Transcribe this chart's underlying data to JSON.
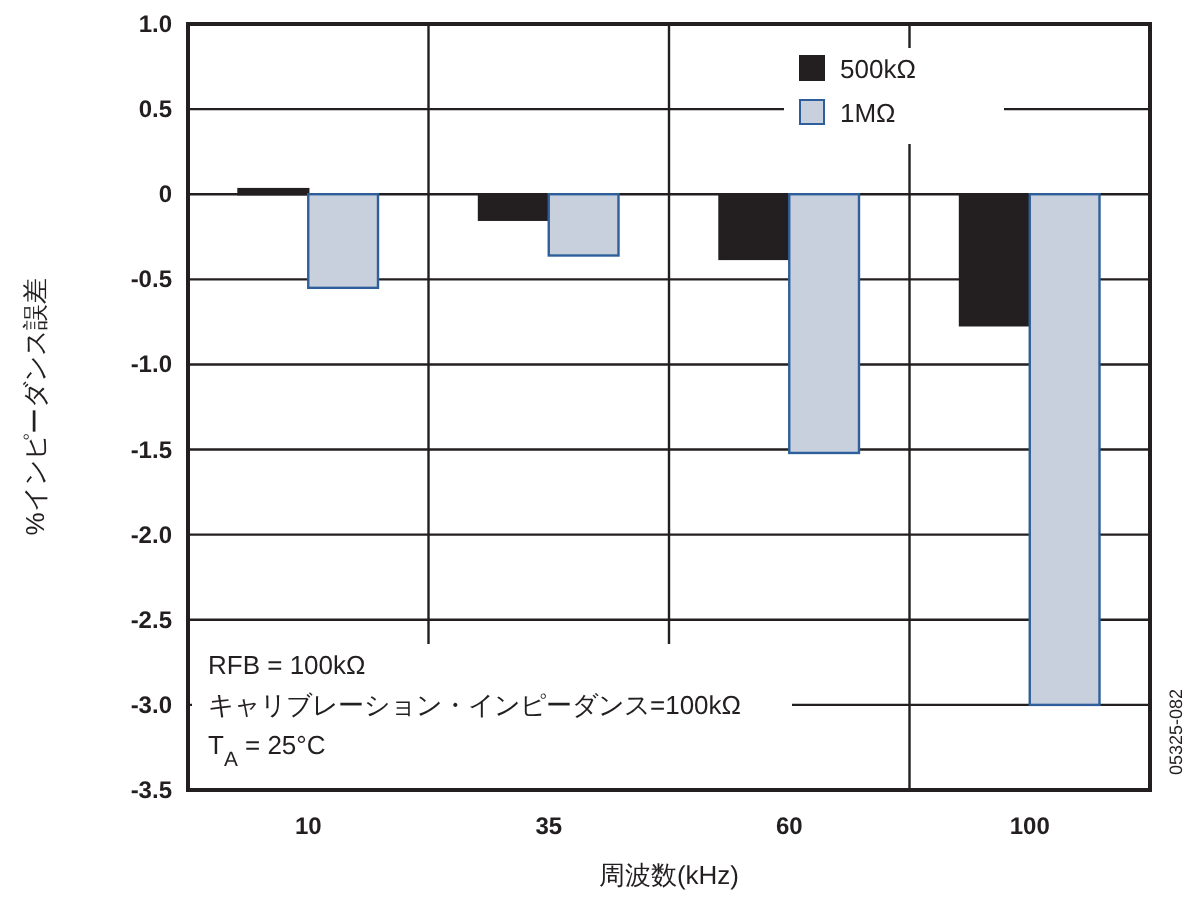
{
  "chart_data": {
    "type": "bar",
    "ylabel": "%インピーダンス誤差",
    "xlabel": "周波数(kHz)",
    "categories": [
      "10",
      "35",
      "60",
      "100"
    ],
    "series": [
      {
        "name": "500kΩ",
        "color": "#231f20",
        "values": [
          0.03,
          -0.15,
          -0.38,
          -0.77
        ]
      },
      {
        "name": "1MΩ",
        "color": "#c8d0de",
        "values": [
          -0.55,
          -0.36,
          -1.52,
          -3.0
        ]
      }
    ],
    "ylim": [
      -3.5,
      1.0
    ],
    "yticks": [
      {
        "value": 1.0,
        "label": "1.0"
      },
      {
        "value": 0.5,
        "label": "0.5"
      },
      {
        "value": 0,
        "label": "0"
      },
      {
        "value": -0.5,
        "label": "-0.5"
      },
      {
        "value": -1.0,
        "label": "-1.0"
      },
      {
        "value": -1.5,
        "label": "-1.5"
      },
      {
        "value": -2.0,
        "label": "-2.0"
      },
      {
        "value": -2.5,
        "label": "-2.5"
      },
      {
        "value": -3.0,
        "label": "-3.0"
      },
      {
        "value": -3.5,
        "label": "-3.5"
      }
    ],
    "grid": true,
    "legend": "top right",
    "annotations": [
      "RFB = 100kΩ",
      "キャリブレーション・インピーダンス=100kΩ",
      "T$_{A}$ = 25°C",
      "05325-082"
    ]
  }
}
